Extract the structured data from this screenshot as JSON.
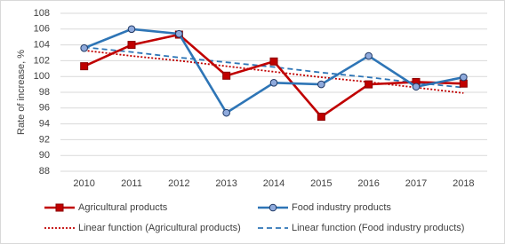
{
  "chart_data": {
    "type": "line",
    "y_label": "Rate of increase, %",
    "categories": [
      "2010",
      "2011",
      "2012",
      "2013",
      "2014",
      "2015",
      "2016",
      "2017",
      "2018"
    ],
    "series": [
      {
        "name": "Agricultural products",
        "color": "#c00000",
        "marker": "square",
        "dash": "solid",
        "values": [
          101.3,
          104.0,
          105.3,
          100.1,
          101.9,
          94.9,
          99.0,
          99.3,
          99.1
        ]
      },
      {
        "name": "Food industry products",
        "color": "#2e75b6",
        "marker": "circle",
        "dash": "solid",
        "values": [
          103.6,
          106.0,
          105.4,
          95.4,
          99.2,
          99.0,
          102.6,
          98.7,
          99.9
        ]
      },
      {
        "name": "Linear function (Agricultural products)",
        "color": "#c00000",
        "marker": "none",
        "dash": "dotted",
        "values": [
          103.3,
          102.6,
          102.0,
          101.3,
          100.6,
          99.9,
          99.3,
          98.6,
          97.9
        ]
      },
      {
        "name": "Linear function (Food industry products)",
        "color": "#2e75b6",
        "marker": "none",
        "dash": "dashed",
        "values": [
          103.7,
          103.1,
          102.4,
          101.8,
          101.2,
          100.5,
          99.9,
          99.2,
          98.6
        ]
      }
    ],
    "ylim": [
      88,
      108
    ],
    "yticks": [
      88,
      90,
      92,
      94,
      96,
      98,
      100,
      102,
      104,
      106,
      108
    ],
    "grid": true,
    "legend": "bottom"
  }
}
